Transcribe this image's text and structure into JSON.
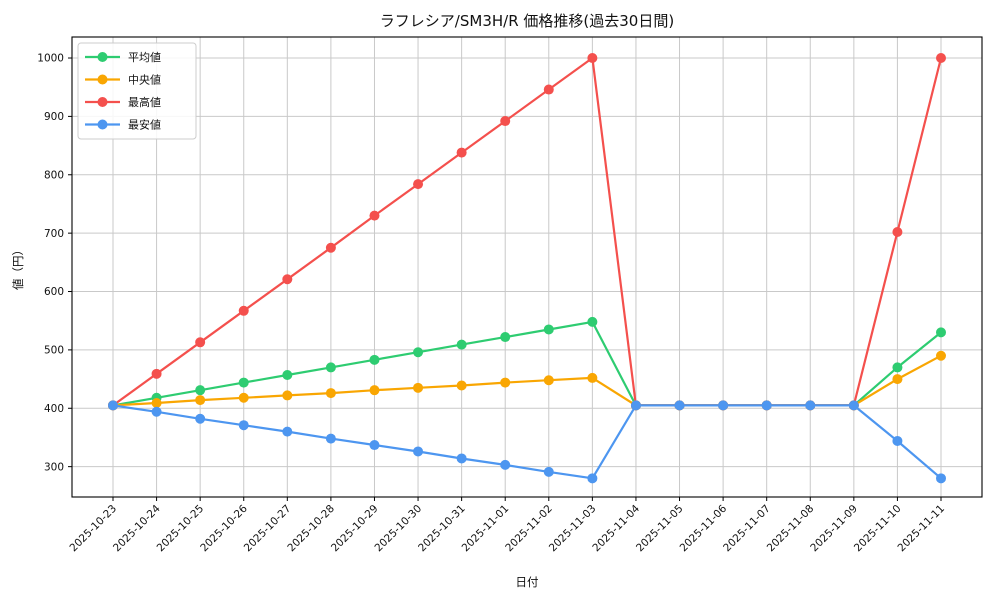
{
  "title": "ラフレシア/SM3H/R 価格推移(過去30日間)",
  "axes": {
    "xlabel": "日付",
    "ylabel": "値（円）"
  },
  "legend": {
    "items": [
      "平均値",
      "中央値",
      "最高値",
      "最安値"
    ]
  },
  "chart_data": {
    "type": "line",
    "title": "ラフレシア/SM3H/R 価格推移(過去30日間)",
    "xlabel": "日付",
    "ylabel": "値（円）",
    "categories": [
      "2025-10-23",
      "2025-10-24",
      "2025-10-25",
      "2025-10-26",
      "2025-10-27",
      "2025-10-28",
      "2025-10-29",
      "2025-10-30",
      "2025-10-31",
      "2025-11-01",
      "2025-11-02",
      "2025-11-03",
      "2025-11-04",
      "2025-11-05",
      "2025-11-06",
      "2025-11-07",
      "2025-11-08",
      "2025-11-09",
      "2025-11-10",
      "2025-11-11"
    ],
    "series": [
      {
        "key": "average",
        "name": "平均値",
        "color": "#2ecc71",
        "values": [
          405,
          418,
          431,
          444,
          457,
          470,
          483,
          496,
          509,
          522,
          535,
          548,
          405,
          405,
          405,
          405,
          405,
          405,
          470,
          530
        ]
      },
      {
        "key": "median",
        "name": "中央値",
        "color": "#f9a602",
        "values": [
          405,
          409,
          414,
          418,
          422,
          426,
          431,
          435,
          439,
          444,
          448,
          452,
          405,
          405,
          405,
          405,
          405,
          405,
          450,
          490
        ]
      },
      {
        "key": "max",
        "name": "最高値",
        "color": "#f4504d",
        "values": [
          405,
          459,
          513,
          567,
          621,
          675,
          730,
          784,
          838,
          892,
          946,
          1000,
          405,
          405,
          405,
          405,
          405,
          405,
          702,
          1000
        ]
      },
      {
        "key": "min",
        "name": "最安値",
        "color": "#4d96f0",
        "values": [
          405,
          394,
          382,
          371,
          360,
          348,
          337,
          326,
          314,
          303,
          291,
          280,
          405,
          405,
          405,
          405,
          405,
          405,
          344,
          280
        ]
      }
    ],
    "yticks": [
      300,
      400,
      500,
      600,
      700,
      800,
      900,
      1000
    ],
    "ylim": [
      248,
      1036
    ],
    "grid": true,
    "legend_position": "upper left"
  },
  "style": {
    "grid_color": "#c9c9c9",
    "spine_color": "#000000",
    "tick_color": "#000000",
    "text_color": "#111111",
    "background": "#ffffff",
    "legend_bg": "#ffffff",
    "legend_border": "#cccccc"
  }
}
